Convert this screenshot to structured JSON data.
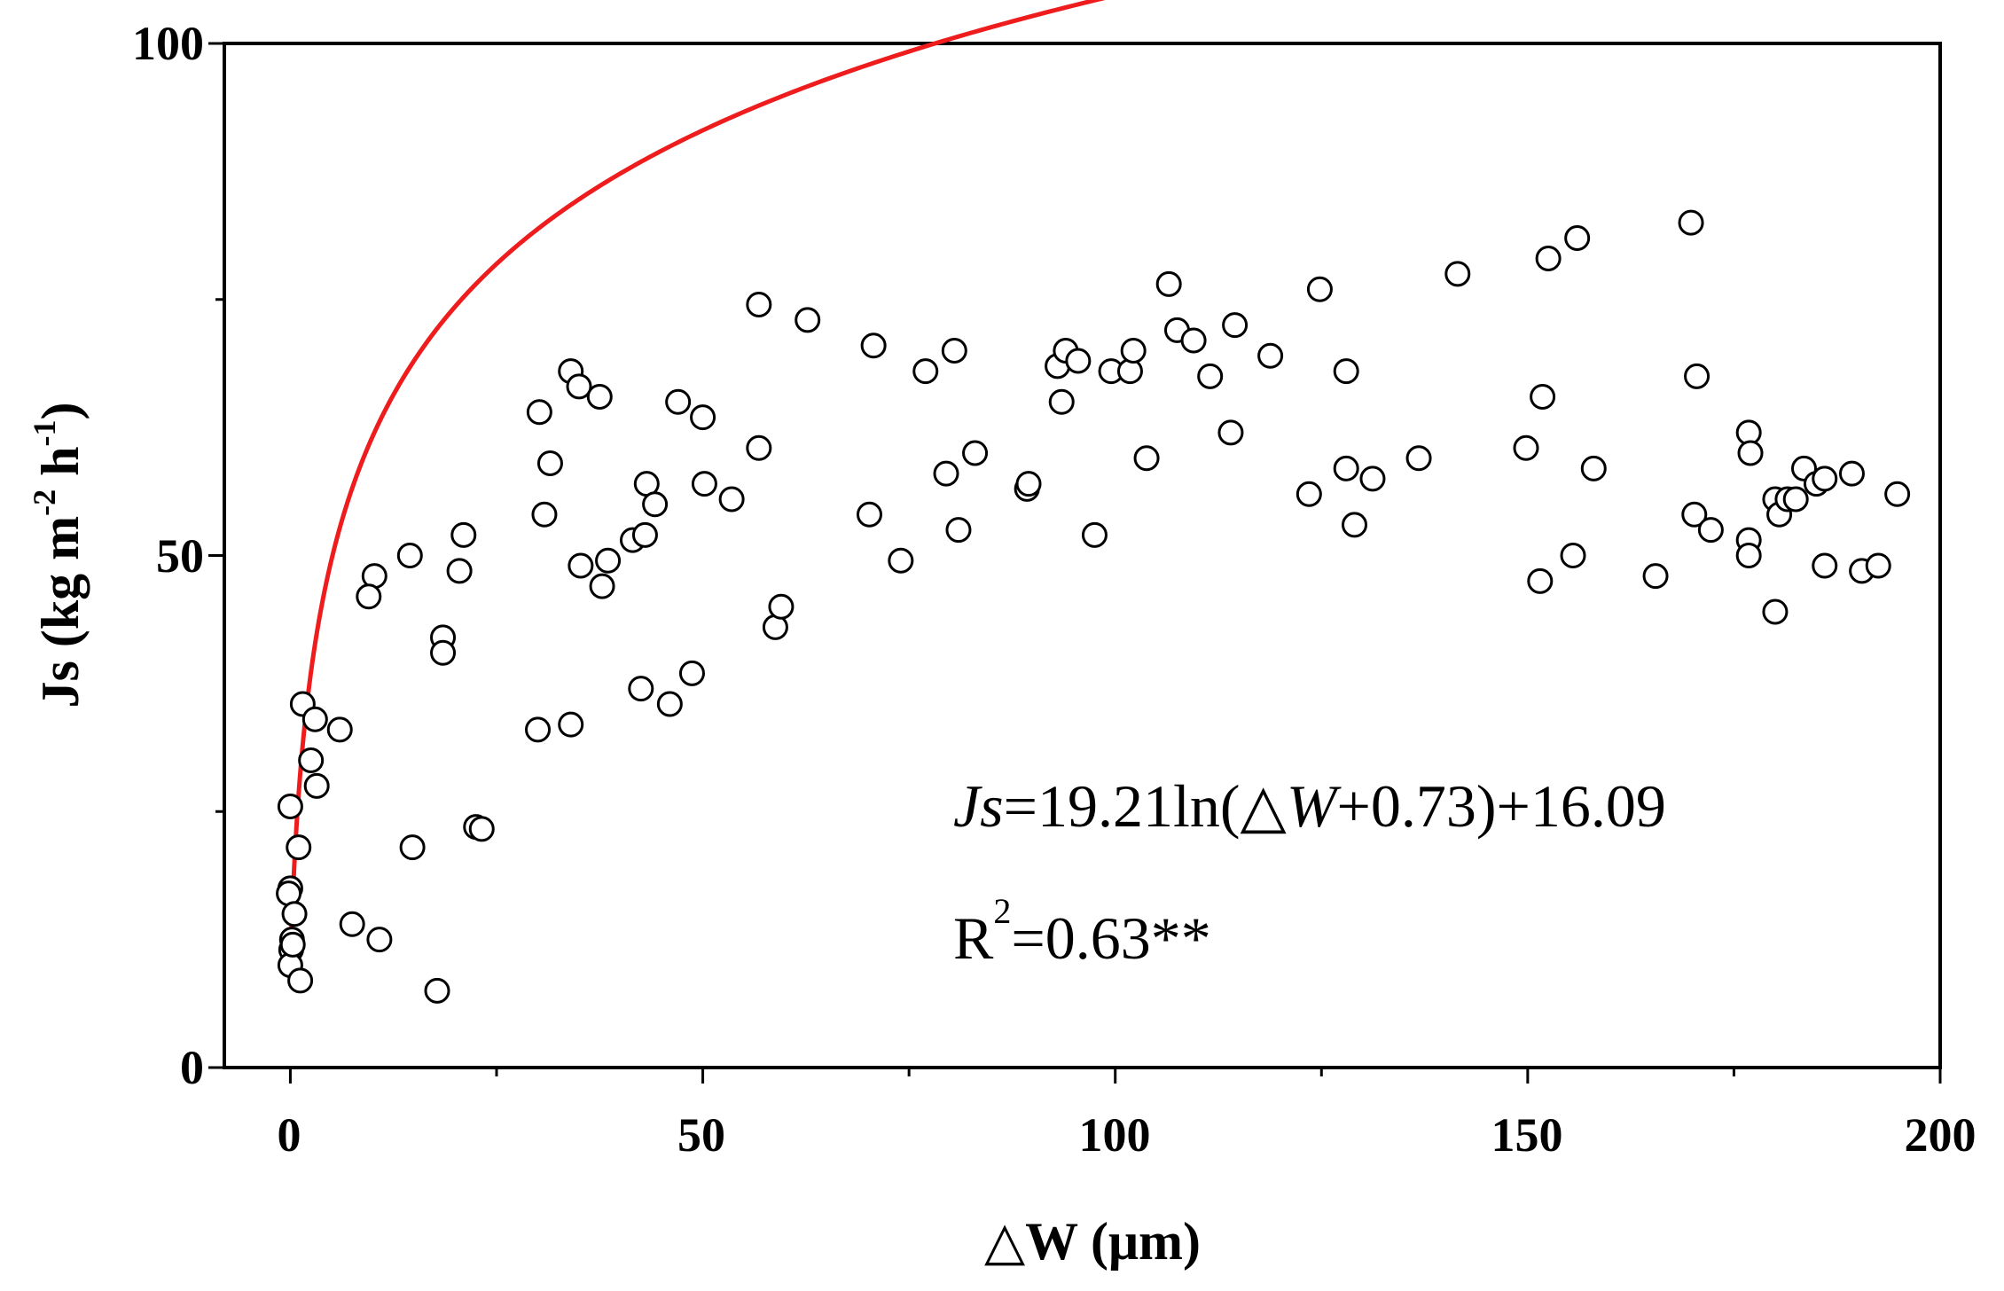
{
  "chart_data": {
    "type": "scatter",
    "xlim": [
      -8,
      200
    ],
    "ylim": [
      0,
      100
    ],
    "x_ticks": [
      0,
      50,
      100,
      150,
      200
    ],
    "x_tick_labels": [
      "0",
      "50",
      "100",
      "150",
      "200"
    ],
    "y_ticks": [
      0,
      50,
      100
    ],
    "y_tick_labels": [
      "0",
      "50",
      "100"
    ],
    "xlabel": "△W (μm)",
    "ylabel": {
      "base": "Js (kg m",
      "sup1": "-2",
      "mid": " h",
      "sup2": "-1",
      "end": ")"
    },
    "equation": {
      "js": "Js",
      "part1": "=19.21ln(",
      "dw": "△W",
      "part2": "+0.73)+16.09"
    },
    "r2": {
      "r": "R",
      "sup": "2",
      "value": "=0.63**"
    },
    "fit": {
      "a": 19.21,
      "b": 0.73,
      "c": 16.09,
      "x_range": [
        0,
        195
      ],
      "color": "#ee1c1c"
    },
    "points": [
      [
        0,
        25.5
      ],
      [
        0,
        17.5
      ],
      [
        -0.2,
        17
      ],
      [
        0.2,
        12.5
      ],
      [
        0.1,
        11.5
      ],
      [
        0.5,
        15
      ],
      [
        0,
        10
      ],
      [
        0.3,
        12
      ],
      [
        1.2,
        8.5
      ],
      [
        1,
        21.5
      ],
      [
        1.5,
        35.5
      ],
      [
        2.5,
        30
      ],
      [
        3,
        34
      ],
      [
        3.2,
        27.5
      ],
      [
        6,
        33
      ],
      [
        7.5,
        14
      ],
      [
        10.2,
        48
      ],
      [
        9.5,
        46
      ],
      [
        10.8,
        12.5
      ],
      [
        14.5,
        50
      ],
      [
        14.8,
        21.5
      ],
      [
        17.8,
        7.5
      ],
      [
        18.5,
        42
      ],
      [
        18.5,
        40.5
      ],
      [
        20.5,
        48.5
      ],
      [
        21,
        52
      ],
      [
        22.5,
        23.5
      ],
      [
        23.2,
        23.3
      ],
      [
        30,
        33
      ],
      [
        30.2,
        64
      ],
      [
        30.8,
        54
      ],
      [
        31.5,
        59
      ],
      [
        34,
        33.5
      ],
      [
        34,
        68
      ],
      [
        35,
        66.5
      ],
      [
        35.2,
        49
      ],
      [
        37.5,
        65.5
      ],
      [
        37.8,
        47
      ],
      [
        38.5,
        49.5
      ],
      [
        41.5,
        51.5
      ],
      [
        42.5,
        37
      ],
      [
        43,
        52
      ],
      [
        43.2,
        57
      ],
      [
        44.2,
        55
      ],
      [
        46,
        35.5
      ],
      [
        47,
        65
      ],
      [
        48.7,
        38.5
      ],
      [
        50,
        63.5
      ],
      [
        50.2,
        57
      ],
      [
        53.5,
        55.5
      ],
      [
        56.8,
        74.5
      ],
      [
        56.8,
        60.5
      ],
      [
        58.8,
        43
      ],
      [
        59.5,
        45
      ],
      [
        62.7,
        73
      ],
      [
        70.2,
        54
      ],
      [
        70.7,
        70.5
      ],
      [
        74,
        49.5
      ],
      [
        77,
        68
      ],
      [
        79.5,
        58
      ],
      [
        80.5,
        70
      ],
      [
        81,
        52.5
      ],
      [
        83,
        60
      ],
      [
        89.3,
        56.5
      ],
      [
        89.5,
        57
      ],
      [
        93,
        68.5
      ],
      [
        93.5,
        65
      ],
      [
        94,
        70
      ],
      [
        95.5,
        69
      ],
      [
        97.5,
        52
      ],
      [
        99.5,
        68
      ],
      [
        101.8,
        68
      ],
      [
        102.2,
        70
      ],
      [
        103.8,
        59.5
      ],
      [
        106.5,
        76.5
      ],
      [
        107.5,
        72
      ],
      [
        109.5,
        71
      ],
      [
        111.5,
        67.5
      ],
      [
        114,
        62
      ],
      [
        114.5,
        72.5
      ],
      [
        118.8,
        69.5
      ],
      [
        123.5,
        56
      ],
      [
        124.8,
        76
      ],
      [
        128,
        58.5
      ],
      [
        128,
        68
      ],
      [
        129,
        53
      ],
      [
        131.2,
        57.5
      ],
      [
        136.8,
        59.5
      ],
      [
        141.5,
        77.5
      ],
      [
        149.8,
        60.5
      ],
      [
        151.5,
        47.5
      ],
      [
        151.8,
        65.5
      ],
      [
        152.5,
        79
      ],
      [
        155.5,
        50
      ],
      [
        156,
        81
      ],
      [
        158,
        58.5
      ],
      [
        165.5,
        48
      ],
      [
        169.8,
        82.5
      ],
      [
        170.2,
        54
      ],
      [
        170.5,
        67.5
      ],
      [
        172.2,
        52.5
      ],
      [
        176.8,
        62
      ],
      [
        177,
        60
      ],
      [
        176.8,
        51.5
      ],
      [
        176.8,
        50
      ],
      [
        180,
        44.5
      ],
      [
        180,
        55.5
      ],
      [
        180.5,
        54
      ],
      [
        181.5,
        55.5
      ],
      [
        182.5,
        55.5
      ],
      [
        183.5,
        58.5
      ],
      [
        185,
        57
      ],
      [
        186,
        57.5
      ],
      [
        186,
        49
      ],
      [
        189.3,
        58
      ],
      [
        190.5,
        48.5
      ],
      [
        192.5,
        49
      ],
      [
        194.8,
        56
      ]
    ]
  }
}
